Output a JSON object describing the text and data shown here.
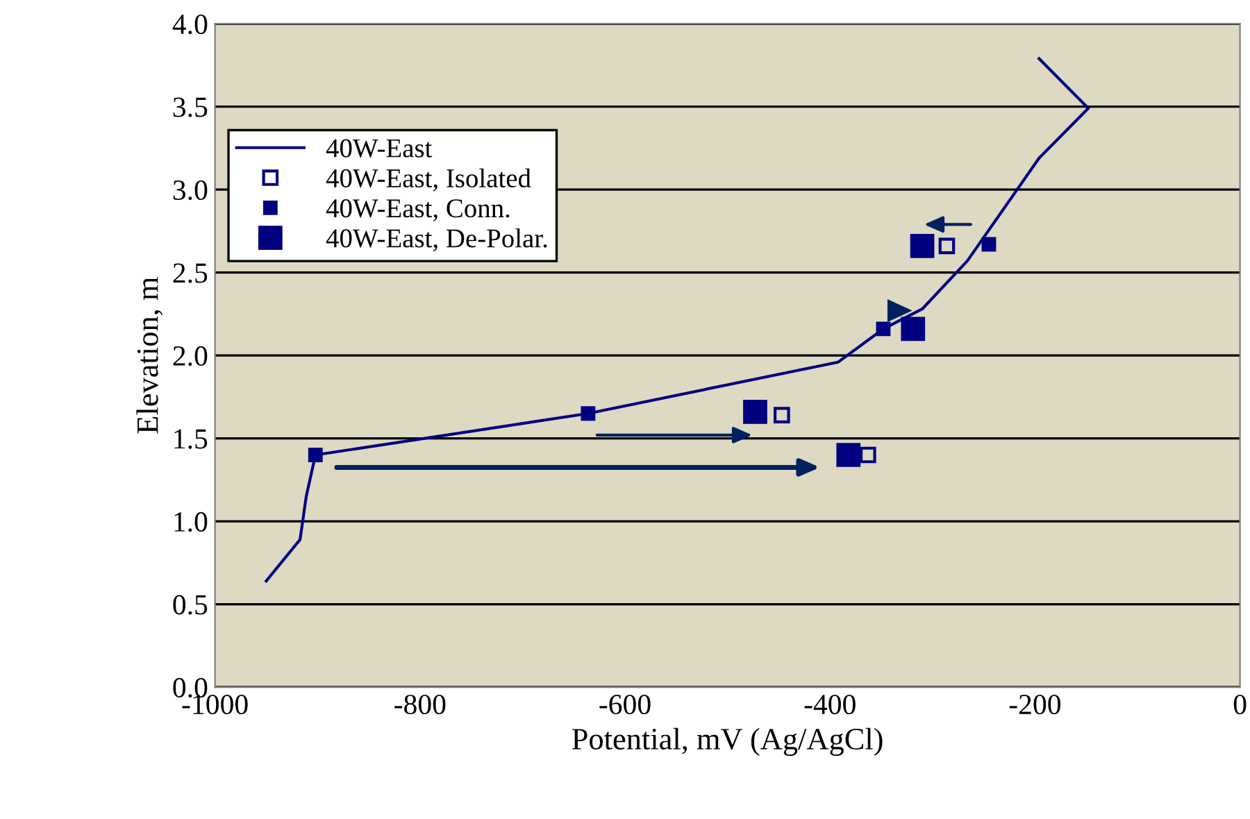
{
  "chart_data": {
    "type": "scatter",
    "xlabel": "Potential, mV (Ag/AgCl)",
    "ylabel": "Elevation, m",
    "xlim": [
      -1000,
      0
    ],
    "xticks": [
      -1000,
      -800,
      -600,
      -400,
      -200,
      0
    ],
    "ylim": [
      0,
      4
    ],
    "yticks": [
      {
        "value": 0,
        "label": "0.0"
      },
      {
        "value": 0.5,
        "label": "0.5"
      },
      {
        "value": 1,
        "label": "1.0"
      },
      {
        "value": 1.5,
        "label": "1.5"
      },
      {
        "value": 2,
        "label": "2.0"
      },
      {
        "value": 2.5,
        "label": "2.5"
      },
      {
        "value": 3,
        "label": "3.0"
      },
      {
        "value": 3.5,
        "label": "3.5"
      },
      {
        "value": 4,
        "label": "4.0"
      }
    ],
    "grid": "y",
    "legend": "top left",
    "series": [
      {
        "name": "40W-East",
        "type": "line",
        "color": "#000080",
        "marker": "none",
        "x": [
          -950,
          -917,
          -911,
          -902,
          -636,
          -392,
          -348,
          -310,
          -266,
          -196,
          -148,
          -196
        ],
        "values": [
          0.64,
          0.89,
          1.15,
          1.4,
          1.65,
          1.96,
          2.16,
          2.28,
          2.57,
          3.19,
          3.49,
          3.79
        ]
      },
      {
        "name": "40W-East, Isolated",
        "marker": "square",
        "color": "#000080",
        "x": [
          -363,
          -447,
          null,
          -286
        ],
        "values": [
          1.4,
          1.64,
          null,
          2.66
        ]
      },
      {
        "name": "40W-East, Conn.",
        "marker": "square",
        "color": "#000080",
        "x": [
          -902,
          -636,
          -348,
          -245
        ],
        "values": [
          1.4,
          1.65,
          2.16,
          2.67
        ]
      },
      {
        "name": "40W-East, De-Polar.",
        "marker": "square",
        "color": "#000080",
        "x": [
          -382,
          -473,
          -319,
          -310
        ],
        "values": [
          1.4,
          1.66,
          2.16,
          2.66
        ]
      }
    ]
  }
}
